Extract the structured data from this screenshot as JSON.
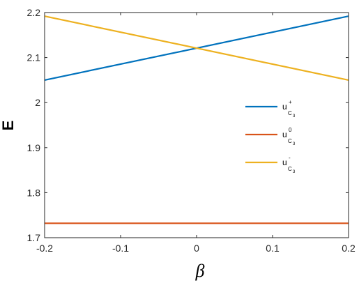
{
  "chart_data": {
    "type": "line",
    "title": "",
    "xlabel": "β",
    "ylabel": "E",
    "xlim": [
      -0.2,
      0.2
    ],
    "ylim": [
      1.7,
      2.2
    ],
    "xticks": [
      -0.2,
      -0.1,
      0,
      0.1,
      0.2
    ],
    "xtick_labels": [
      "-0.2",
      "-0.1",
      "0",
      "0.1",
      "0.2"
    ],
    "yticks": [
      1.7,
      1.8,
      1.9,
      2.0,
      2.1,
      2.2
    ],
    "ytick_labels": [
      "1.7",
      "1.8",
      "1.9",
      "2",
      "2.1",
      "2.2"
    ],
    "grid": false,
    "legend_position": "center-right",
    "series": [
      {
        "name": "u_{C_3}^{+}",
        "label_main": "u",
        "label_sup": "+",
        "label_sub": "C",
        "label_subsub": "3",
        "color": "#0072BD",
        "x": [
          -0.2,
          0.2
        ],
        "y": [
          2.05,
          2.192
        ]
      },
      {
        "name": "u_{C_3}^{0}",
        "label_main": "u",
        "label_sup": "0",
        "label_sub": "C",
        "label_subsub": "3",
        "color": "#D95319",
        "x": [
          -0.2,
          0.2
        ],
        "y": [
          1.732,
          1.732
        ]
      },
      {
        "name": "u_{C_3}^{-}",
        "label_main": "u",
        "label_sup": "-",
        "label_sub": "C",
        "label_subsub": "3",
        "color": "#EDB120",
        "x": [
          -0.2,
          0.2
        ],
        "y": [
          2.192,
          2.05
        ]
      }
    ]
  }
}
